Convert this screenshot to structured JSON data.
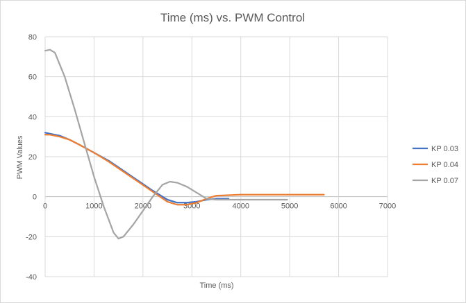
{
  "chart_data": {
    "type": "line",
    "title": "Time (ms) vs. PWM Control",
    "xlabel": "Time (ms)",
    "ylabel": "PWM Values",
    "xlim": [
      0,
      7000
    ],
    "ylim": [
      -40,
      80
    ],
    "xticks": [
      0,
      1000,
      2000,
      3000,
      4000,
      5000,
      6000,
      7000
    ],
    "yticks": [
      -40,
      -20,
      0,
      20,
      40,
      60,
      80
    ],
    "grid": true,
    "legend_position": "right",
    "series": [
      {
        "name": "KP 0.03",
        "color": "#4472C4",
        "x": [
          0,
          100,
          300,
          500,
          700,
          1000,
          1300,
          1600,
          1900,
          2200,
          2500,
          2700,
          2900,
          3100,
          3300,
          3500,
          3750
        ],
        "y": [
          32,
          31.5,
          30.5,
          28.5,
          26,
          22,
          18,
          13,
          8,
          3,
          -1.5,
          -3,
          -3,
          -2.5,
          -1.5,
          -1,
          -1
        ]
      },
      {
        "name": "KP 0.04",
        "color": "#ED7D31",
        "x": [
          0,
          100,
          300,
          500,
          700,
          1000,
          1300,
          1600,
          1900,
          2200,
          2500,
          2700,
          2900,
          3100,
          3300,
          3500,
          4000,
          4500,
          5000,
          5700
        ],
        "y": [
          31,
          31,
          30,
          28.5,
          26,
          22,
          17.5,
          12.5,
          7.5,
          2.5,
          -2.5,
          -4,
          -4,
          -3,
          -1,
          0.5,
          1,
          1,
          1,
          1
        ]
      },
      {
        "name": "KP 0.07",
        "color": "#A5A5A5",
        "x": [
          0,
          100,
          200,
          400,
          600,
          800,
          1000,
          1200,
          1400,
          1500,
          1600,
          1800,
          2000,
          2200,
          2400,
          2550,
          2700,
          2900,
          3100,
          3300,
          3500,
          4000,
          4500,
          4950
        ],
        "y": [
          73,
          73.5,
          72,
          60,
          44,
          27,
          10,
          -5,
          -18,
          -21,
          -20,
          -14,
          -7,
          0,
          6,
          7.5,
          7,
          5,
          2,
          -1,
          -1.5,
          -1.5,
          -1.5,
          -1.5
        ]
      }
    ]
  }
}
